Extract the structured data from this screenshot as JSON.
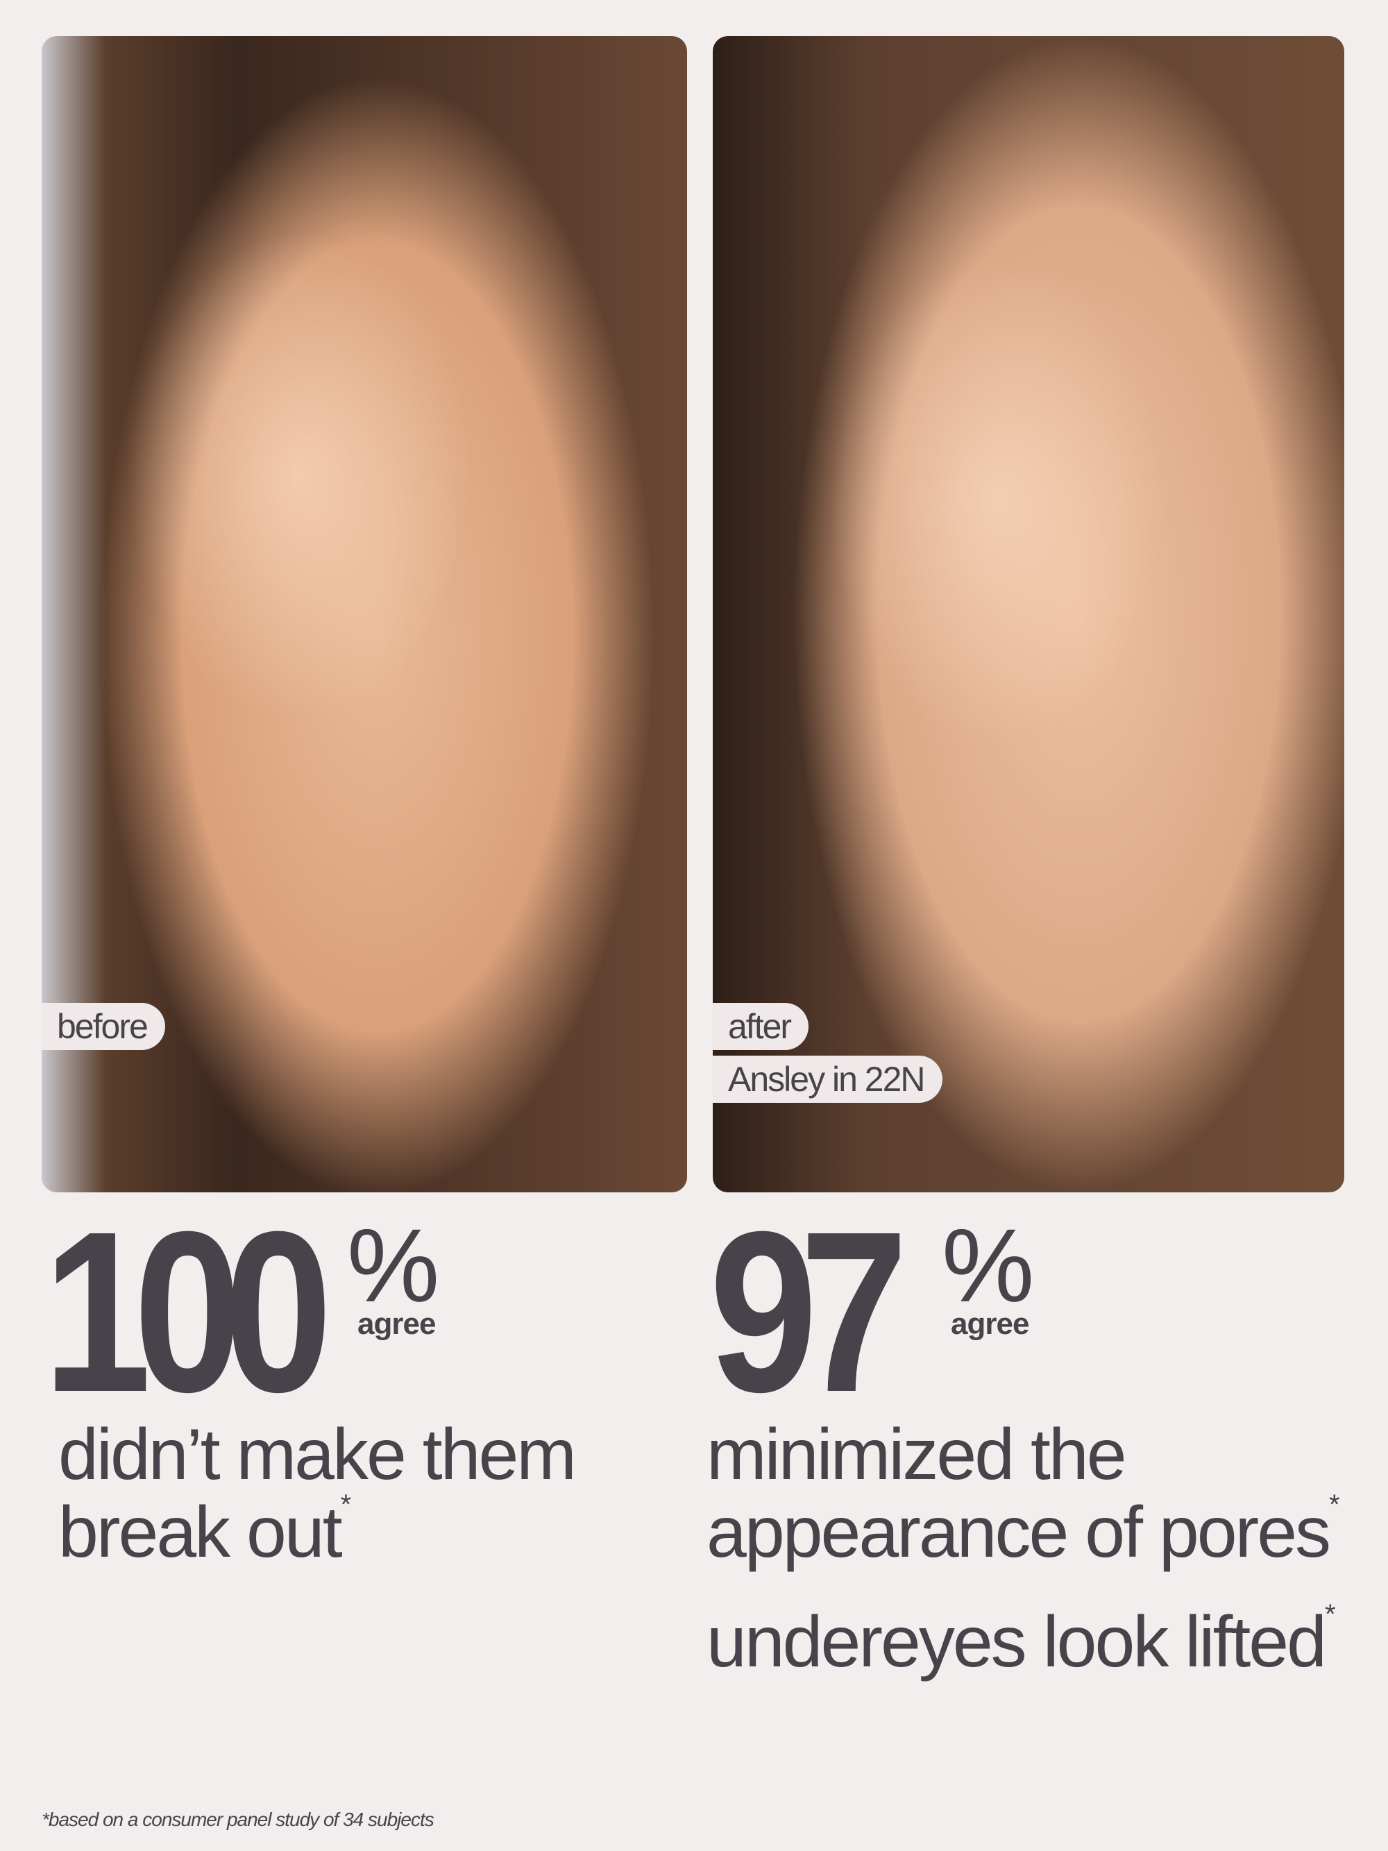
{
  "before_panel": {
    "label": "before"
  },
  "after_panel": {
    "label": "after",
    "model_caption": "Ansley in 22N"
  },
  "stats": [
    {
      "value": "100",
      "unit": "%",
      "qualifier": "agree",
      "lines": [
        "didn’t make them",
        "break out"
      ],
      "mark": "*"
    },
    {
      "value": "97",
      "unit": "%",
      "qualifier": "agree",
      "lines": [
        "minimized the",
        "appearance of pores"
      ],
      "mark": "*"
    }
  ],
  "extra_claim": {
    "text": "undereyes look lifted",
    "mark": "*"
  },
  "footnote": "*based on a consumer panel study of 34 subjects",
  "colors": {
    "background": "#f3eeee",
    "text": "#48434a",
    "label_bg": "#efe9e9"
  }
}
